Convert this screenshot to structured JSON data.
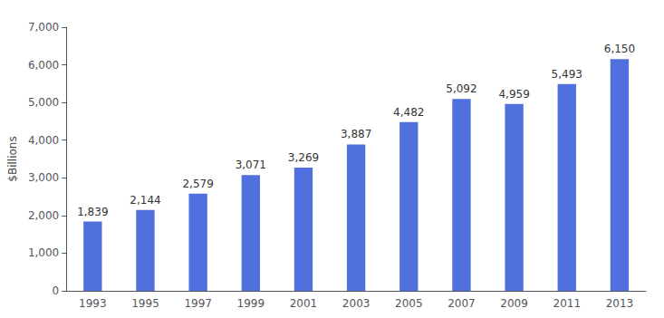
{
  "chart_data": {
    "type": "bar",
    "ylabel": "$Billions",
    "categories": [
      "1993",
      "1995",
      "1997",
      "1999",
      "2001",
      "2003",
      "2005",
      "2007",
      "2009",
      "2011",
      "2013"
    ],
    "values": [
      1839,
      2144,
      2579,
      3071,
      3269,
      3887,
      4482,
      5092,
      4959,
      5493,
      6150
    ],
    "value_labels": [
      "1,839",
      "2,144",
      "2,579",
      "3,071",
      "3,269",
      "3,887",
      "4,482",
      "5,092",
      "4,959",
      "5,493",
      "6,150"
    ],
    "data_labels": true,
    "ylim": [
      0,
      7000
    ],
    "yticks": [
      0,
      {
        "value": 1000,
        "label": "1,000"
      },
      {
        "value": 2000,
        "label": "2,000"
      },
      {
        "value": 3000,
        "label": "3,000"
      },
      {
        "value": 4000,
        "label": "4,000"
      },
      {
        "value": 5000,
        "label": "5,000"
      },
      {
        "value": 6000,
        "label": "6,000"
      },
      {
        "value": 7000,
        "label": "7,000"
      }
    ],
    "grid": false
  }
}
